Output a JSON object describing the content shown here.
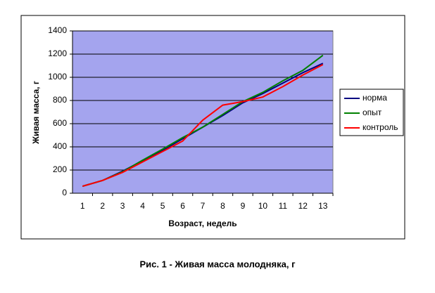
{
  "chart_data": {
    "type": "line",
    "title": "Рис. 1 - Живая масса молодняка, г",
    "x_label": "Возраст, недель",
    "y_label": "Живая масса, г",
    "categories": [
      "1",
      "2",
      "3",
      "4",
      "5",
      "6",
      "7",
      "8",
      "9",
      "10",
      "11",
      "12",
      "13"
    ],
    "series": [
      {
        "name": "норма",
        "color": "#000080",
        "values": [
          60,
          110,
          190,
          280,
          370,
          470,
          570,
          670,
          780,
          860,
          950,
          1040,
          1120
        ]
      },
      {
        "name": "опыт",
        "color": "#008000",
        "values": [
          60,
          110,
          185,
          285,
          380,
          480,
          570,
          680,
          790,
          870,
          970,
          1060,
          1190
        ]
      },
      {
        "name": "контроль",
        "color": "#ff0000",
        "values": [
          60,
          110,
          180,
          270,
          360,
          450,
          630,
          760,
          790,
          830,
          920,
          1020,
          1110
        ]
      }
    ],
    "ylim": [
      0,
      1400
    ],
    "yticks": [
      0,
      200,
      400,
      600,
      800,
      1000,
      1200,
      1400
    ],
    "grid": true,
    "legend": "right",
    "plot_background": "#a4a4ee"
  }
}
